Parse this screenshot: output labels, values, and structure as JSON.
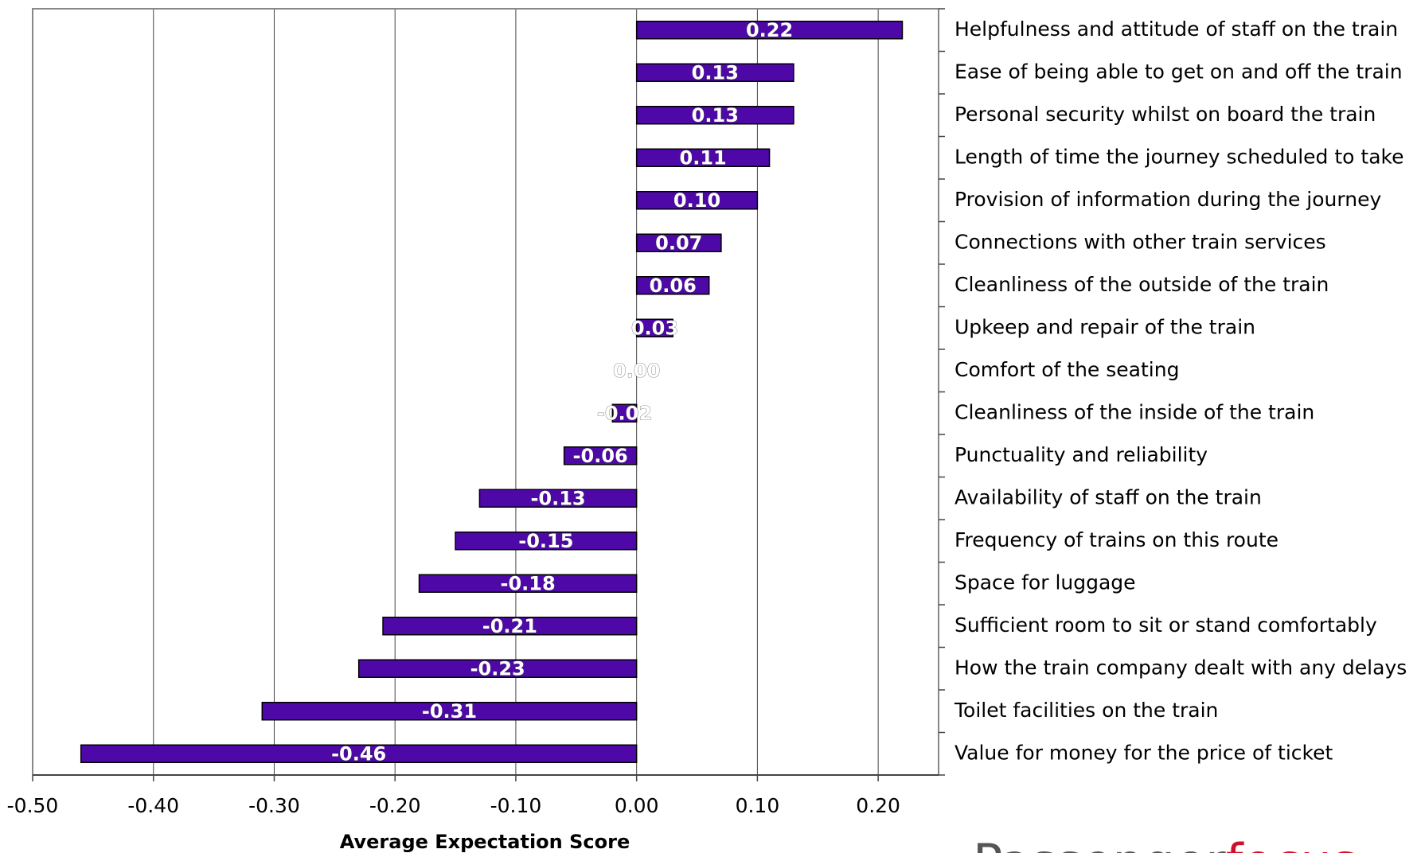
{
  "chart_data": {
    "type": "hbar",
    "categories": [
      "Helpfulness and attitude of staff on the train",
      "Ease of being able to get on and off the train",
      "Personal security whilst on board the train",
      "Length of time the journey scheduled to take",
      "Provision of information during the journey",
      "Connections with other train services",
      "Cleanliness of the outside of the train",
      "Upkeep and repair of the train",
      "Comfort of the seating",
      "Cleanliness of the inside of the train",
      "Punctuality and reliability",
      "Availability of staff on the train",
      "Frequency of trains on this route",
      "Space for luggage",
      "Sufficient room to sit or stand comfortably",
      "How the train company dealt with any delays",
      "Toilet facilities on the train",
      "Value for money for the price of ticket"
    ],
    "values": [
      0.22,
      0.13,
      0.13,
      0.11,
      0.1,
      0.07,
      0.06,
      0.03,
      0.0,
      -0.02,
      -0.06,
      -0.13,
      -0.15,
      -0.18,
      -0.21,
      -0.23,
      -0.31,
      -0.46
    ],
    "value_labels": [
      "0.22",
      "0.13",
      "0.13",
      "0.11",
      "0.10",
      "0.07",
      "0.06",
      "0.03",
      "0.00",
      "-0.02",
      "-0.06",
      "-0.13",
      "-0.15",
      "-0.18",
      "-0.21",
      "-0.23",
      "-0.31",
      "-0.46"
    ],
    "color": "#4e08a8",
    "xlim": [
      -0.5,
      0.25
    ],
    "xticks": [
      {
        "value": -0.5,
        "label": "-0.50"
      },
      {
        "value": -0.4,
        "label": "-0.40"
      },
      {
        "value": -0.3,
        "label": "-0.30"
      },
      {
        "value": -0.2,
        "label": "-0.20"
      },
      {
        "value": -0.1,
        "label": "-0.10"
      },
      {
        "value": 0,
        "label": "0.00"
      },
      {
        "value": 0.1,
        "label": "0.10"
      },
      {
        "value": 0.2,
        "label": "0.20"
      }
    ],
    "x_label": "Average Expectation Score",
    "grid": true,
    "logo": [
      "Passenger",
      "focus"
    ]
  }
}
